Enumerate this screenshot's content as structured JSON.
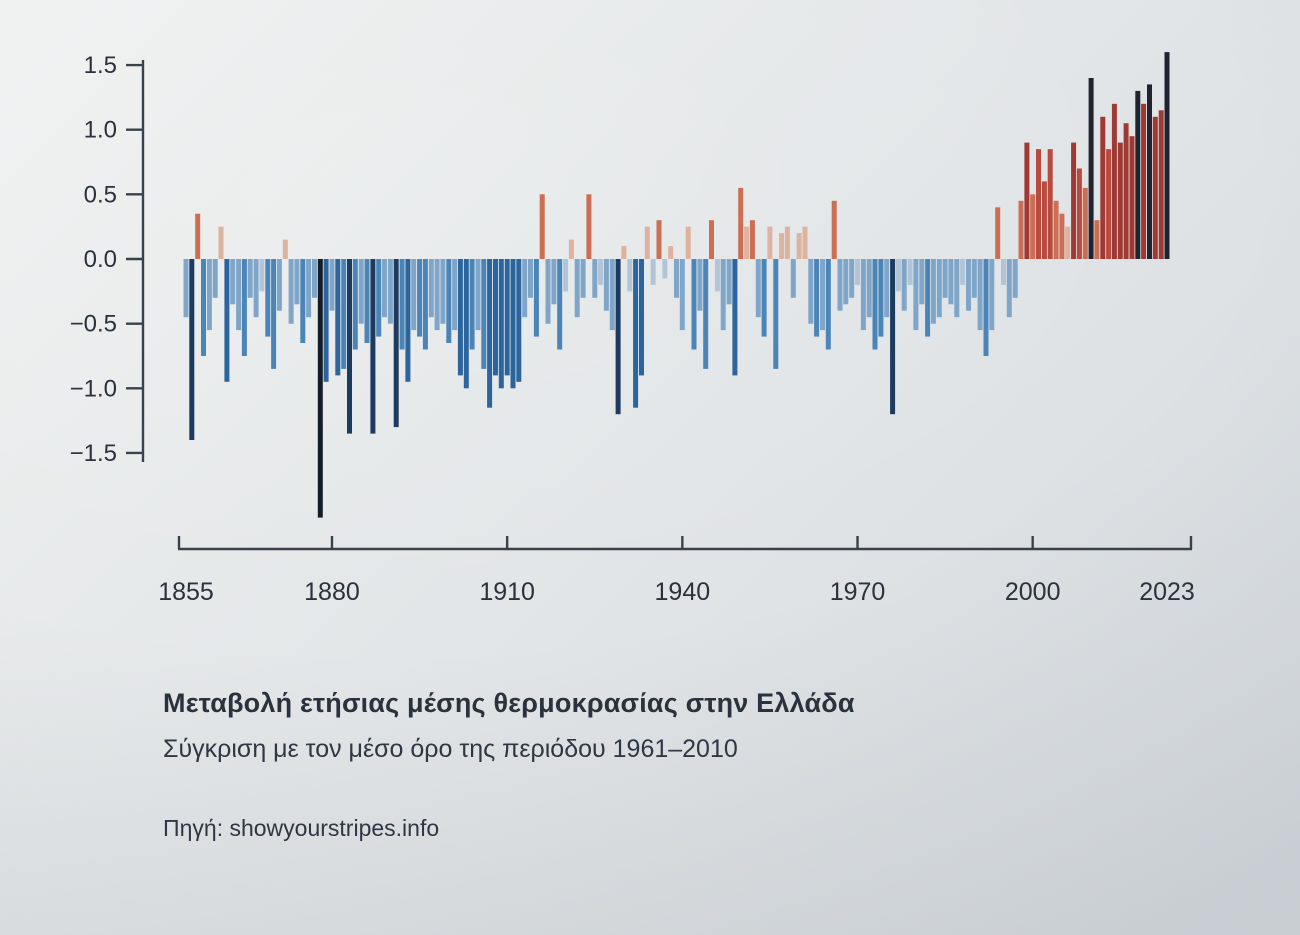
{
  "page": {
    "background": "#e3e6e8",
    "text_color": "#2a323d",
    "axis_color": "#39414a"
  },
  "title_block": {
    "title": "Μεταβολή ετήσιας μέσης θερμοκρασίας στην Ελλάδα",
    "subtitle": "Σύγκριση με τον μέσο όρο της περιόδου 1961–2010",
    "source": "Πηγή: showyourstripes.info"
  },
  "chart_data": {
    "type": "bar",
    "title": "Μεταβολή ετήσιας μέσης θερμοκρασίας στην Ελλάδα",
    "subtitle": "Σύγκριση με τον μέσο όρο της περιόδου 1961–2010",
    "source": "Πηγή: showyourstripes.info",
    "xlabel": "",
    "ylabel": "",
    "grid": false,
    "legend": "none",
    "years_start": 1855,
    "years_end": 2023,
    "x_ticks": [
      1855,
      1880,
      1910,
      1940,
      1970,
      2000,
      2023
    ],
    "y_ticks": [
      1.5,
      1.0,
      0.5,
      0.0,
      -0.5,
      -1.0,
      -1.5
    ],
    "ylim": [
      -2.0,
      1.6
    ],
    "values": [
      -0.45,
      -1.4,
      0.35,
      -0.75,
      -0.55,
      -0.3,
      0.25,
      -0.95,
      -0.35,
      -0.55,
      -0.75,
      -0.3,
      -0.45,
      -0.25,
      -0.6,
      -0.85,
      -0.4,
      0.15,
      -0.5,
      -0.35,
      -0.65,
      -0.45,
      -0.3,
      -2.0,
      -0.95,
      -0.4,
      -0.9,
      -0.85,
      -1.35,
      -0.7,
      -0.5,
      -0.65,
      -1.35,
      -0.6,
      -0.45,
      -0.5,
      -1.3,
      -0.7,
      -0.95,
      -0.55,
      -0.6,
      -0.7,
      -0.45,
      -0.55,
      -0.5,
      -0.65,
      -0.55,
      -0.9,
      -1.0,
      -0.7,
      -0.55,
      -0.85,
      -1.15,
      -0.9,
      -1.0,
      -0.9,
      -1.0,
      -0.95,
      -0.45,
      -0.3,
      -0.6,
      0.5,
      -0.5,
      -0.35,
      -0.7,
      -0.25,
      0.15,
      -0.45,
      -0.3,
      0.5,
      -0.3,
      -0.2,
      -0.4,
      -0.55,
      -1.2,
      0.1,
      -0.25,
      -1.15,
      -0.9,
      0.25,
      -0.2,
      0.3,
      -0.15,
      0.1,
      -0.3,
      -0.55,
      0.25,
      -0.7,
      -0.4,
      -0.85,
      0.3,
      -0.25,
      -0.55,
      -0.35,
      -0.9,
      0.55,
      0.25,
      0.3,
      -0.45,
      -0.6,
      0.25,
      -0.85,
      0.2,
      0.25,
      -0.3,
      0.2,
      0.25,
      -0.5,
      -0.6,
      -0.55,
      -0.7,
      0.45,
      -0.4,
      -0.35,
      -0.3,
      -0.2,
      -0.55,
      -0.45,
      -0.7,
      -0.6,
      -0.45,
      -1.2,
      -0.25,
      -0.4,
      -0.2,
      -0.55,
      -0.35,
      -0.6,
      -0.5,
      -0.45,
      -0.3,
      -0.35,
      -0.45,
      -0.2,
      -0.4,
      -0.3,
      -0.55,
      -0.75,
      -0.55,
      0.4,
      -0.2,
      -0.45,
      -0.3,
      0.45,
      0.9,
      0.5,
      0.85,
      0.6,
      0.85,
      0.45,
      0.35,
      0.25,
      0.9,
      0.7,
      0.55,
      1.4,
      0.3,
      1.1,
      0.85,
      1.2,
      0.9,
      1.05,
      0.95,
      1.3,
      1.2,
      1.35,
      1.1,
      1.15,
      1.6
    ],
    "palette": {
      "positive": [
        {
          "min": 1.3,
          "color": "#20242e"
        },
        {
          "min": 0.9,
          "color": "#9e3a33"
        },
        {
          "min": 0.6,
          "color": "#b94a3e"
        },
        {
          "min": 0.3,
          "color": "#cb6e54"
        },
        {
          "min": 0.0,
          "color": "#ddb29e"
        }
      ],
      "negative": [
        {
          "min": 1.6,
          "color": "#141d27"
        },
        {
          "min": 1.2,
          "color": "#1d3a5f"
        },
        {
          "min": 0.9,
          "color": "#2c659e"
        },
        {
          "min": 0.6,
          "color": "#4b85b8"
        },
        {
          "min": 0.3,
          "color": "#7fa6c9"
        },
        {
          "min": 0.0,
          "color": "#b3c4d6"
        }
      ]
    }
  }
}
